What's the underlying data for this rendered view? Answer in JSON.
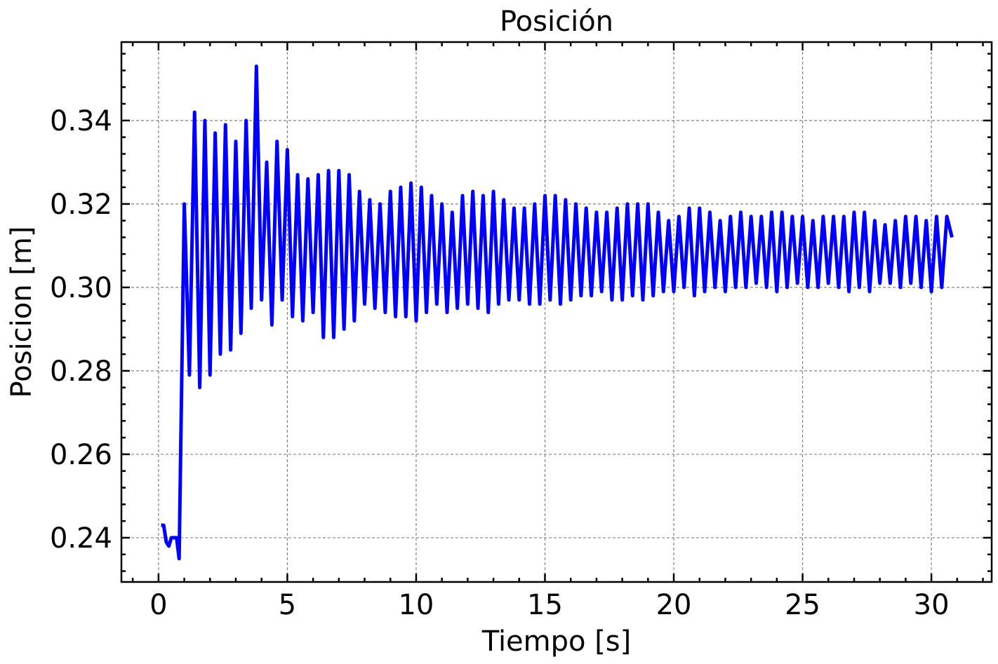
{
  "chart_data": {
    "type": "line",
    "title": "Posición",
    "x_label": "Tiempo [s]",
    "y_label": "Posicion [m]",
    "grid": true,
    "xlim": [
      -1.44,
      32.34
    ],
    "ylim": [
      0.2294,
      0.3588
    ],
    "xticks": [
      0,
      5,
      10,
      15,
      20,
      25,
      30
    ],
    "yticks": [
      0.24,
      0.26,
      0.28,
      {
        "value": 0.3,
        "label": "0.30"
      },
      0.32,
      0.34
    ],
    "series": [
      {
        "name": "Posicion",
        "color": "#0000ff",
        "x": [
          0.1,
          0.2,
          0.3,
          0.4,
          0.5,
          0.7,
          0.8,
          1.0,
          1.2,
          1.4,
          1.6,
          1.8,
          2.0,
          2.2,
          2.4,
          2.6,
          2.8,
          3.0,
          3.2,
          3.4,
          3.6,
          3.8,
          4.0,
          4.2,
          4.4,
          4.6,
          4.8,
          5.0,
          5.2,
          5.4,
          5.6,
          5.8,
          6.0,
          6.2,
          6.4,
          6.6,
          6.8,
          7.0,
          7.2,
          7.4,
          7.6,
          7.8,
          8.0,
          8.2,
          8.4,
          8.6,
          8.8,
          9.0,
          9.2,
          9.4,
          9.6,
          9.8,
          10.0,
          10.2,
          10.4,
          10.6,
          10.8,
          11.0,
          11.2,
          11.4,
          11.6,
          11.8,
          12.0,
          12.2,
          12.4,
          12.6,
          12.8,
          13.0,
          13.2,
          13.4,
          13.6,
          13.8,
          14.0,
          14.2,
          14.4,
          14.6,
          14.8,
          15.0,
          15.2,
          15.4,
          15.6,
          15.8,
          16.0,
          16.2,
          16.4,
          16.6,
          16.8,
          17.0,
          17.2,
          17.4,
          17.6,
          17.8,
          18.0,
          18.2,
          18.4,
          18.6,
          18.8,
          19.0,
          19.2,
          19.4,
          19.6,
          19.8,
          20.0,
          20.2,
          20.4,
          20.6,
          20.8,
          21.0,
          21.2,
          21.4,
          21.6,
          21.8,
          22.0,
          22.2,
          22.4,
          22.6,
          22.8,
          23.0,
          23.2,
          23.4,
          23.6,
          23.8,
          24.0,
          24.2,
          24.4,
          24.6,
          24.8,
          25.0,
          25.2,
          25.4,
          25.6,
          25.8,
          26.0,
          26.2,
          26.4,
          26.6,
          26.8,
          27.0,
          27.2,
          27.4,
          27.6,
          27.8,
          28.0,
          28.2,
          28.4,
          28.6,
          28.8,
          29.0,
          29.2,
          29.4,
          29.6,
          29.8,
          30.0,
          30.2,
          30.4,
          30.6,
          30.8
        ],
        "values": [
          0.243,
          0.243,
          0.239,
          0.238,
          0.24,
          0.24,
          0.235,
          0.32,
          0.279,
          0.342,
          0.276,
          0.34,
          0.279,
          0.337,
          0.284,
          0.339,
          0.285,
          0.335,
          0.289,
          0.34,
          0.295,
          0.353,
          0.297,
          0.33,
          0.291,
          0.335,
          0.297,
          0.333,
          0.293,
          0.327,
          0.292,
          0.326,
          0.294,
          0.327,
          0.288,
          0.328,
          0.288,
          0.328,
          0.29,
          0.327,
          0.292,
          0.323,
          0.296,
          0.321,
          0.295,
          0.32,
          0.294,
          0.323,
          0.293,
          0.324,
          0.293,
          0.325,
          0.292,
          0.324,
          0.294,
          0.322,
          0.296,
          0.32,
          0.294,
          0.318,
          0.295,
          0.322,
          0.296,
          0.323,
          0.295,
          0.322,
          0.294,
          0.323,
          0.296,
          0.321,
          0.297,
          0.319,
          0.297,
          0.319,
          0.296,
          0.32,
          0.296,
          0.322,
          0.297,
          0.322,
          0.296,
          0.321,
          0.297,
          0.32,
          0.298,
          0.319,
          0.298,
          0.318,
          0.299,
          0.318,
          0.297,
          0.319,
          0.297,
          0.32,
          0.298,
          0.32,
          0.297,
          0.32,
          0.298,
          0.318,
          0.299,
          0.316,
          0.299,
          0.317,
          0.3,
          0.319,
          0.298,
          0.319,
          0.299,
          0.318,
          0.3,
          0.316,
          0.299,
          0.317,
          0.3,
          0.318,
          0.3,
          0.317,
          0.301,
          0.317,
          0.3,
          0.318,
          0.299,
          0.318,
          0.3,
          0.317,
          0.301,
          0.317,
          0.3,
          0.316,
          0.3,
          0.317,
          0.301,
          0.317,
          0.3,
          0.317,
          0.299,
          0.318,
          0.3,
          0.318,
          0.299,
          0.316,
          0.301,
          0.315,
          0.301,
          0.316,
          0.3,
          0.317,
          0.301,
          0.317,
          0.3,
          0.316,
          0.299,
          0.317,
          0.3,
          0.317,
          0.312
        ]
      }
    ]
  }
}
